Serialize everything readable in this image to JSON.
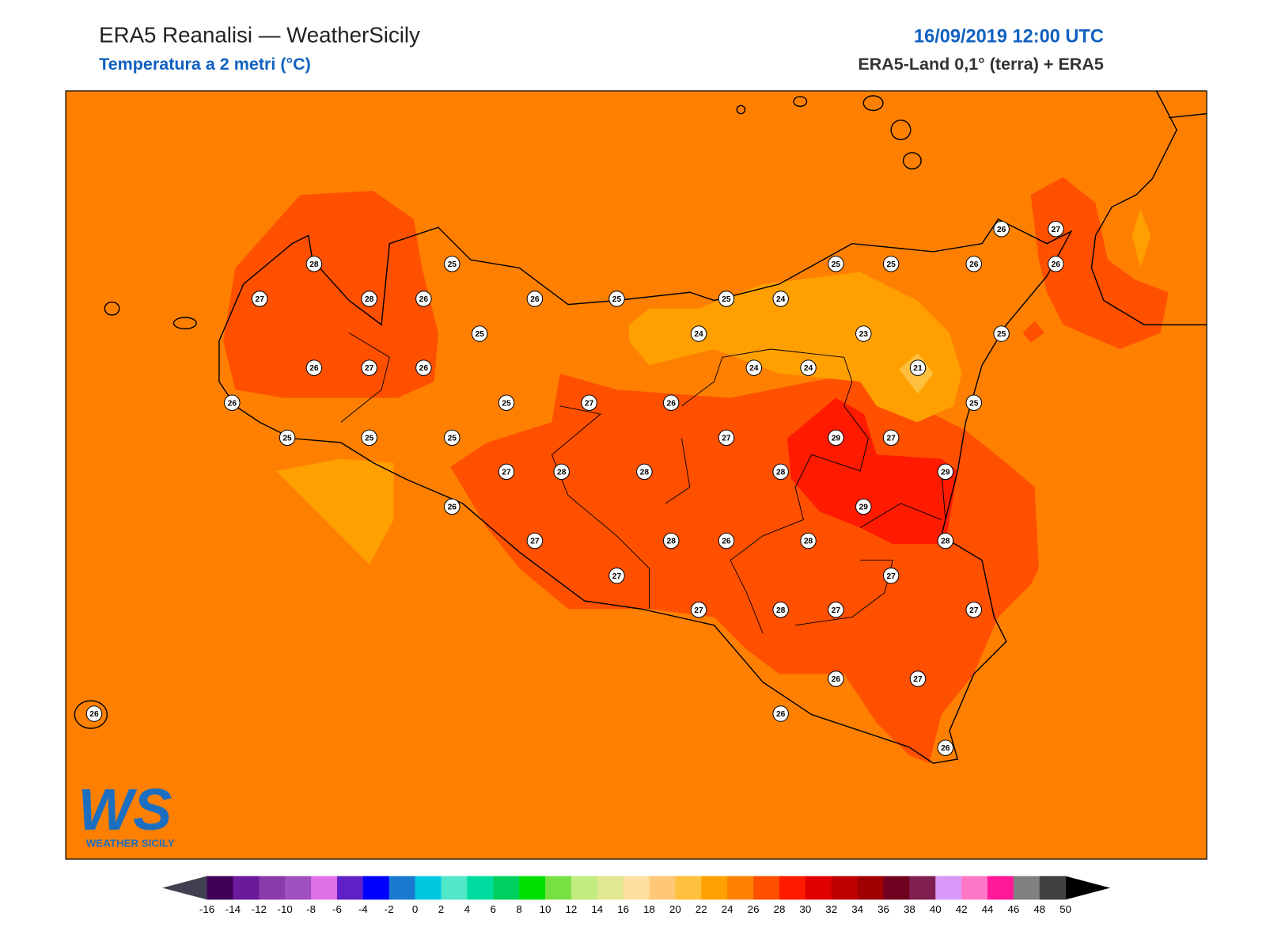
{
  "header": {
    "title": "ERA5 Reanalisi — WeatherSicily",
    "subtitle": "Temperatura a 2 metri (°C)",
    "datetime": "16/09/2019 12:00 UTC",
    "source": "ERA5-Land 0,1° (terra) + ERA5"
  },
  "map": {
    "stations": [
      28,
      25,
      27,
      28,
      26,
      26,
      25,
      25,
      26,
      27,
      26,
      26,
      25,
      25,
      25,
      25,
      27,
      26,
      25,
      24,
      24,
      24,
      24,
      25,
      25,
      26,
      26,
      27,
      26,
      23,
      25,
      21,
      25,
      27,
      29,
      27,
      27,
      28,
      28,
      28,
      29,
      26,
      29,
      27,
      28,
      26,
      28,
      28,
      27,
      27,
      27,
      28,
      27,
      27,
      26,
      27,
      26,
      26,
      26
    ]
  },
  "colorbar": {
    "ticks": [
      -16,
      -14,
      -12,
      -10,
      -8,
      -6,
      -4,
      -2,
      0,
      2,
      4,
      6,
      8,
      10,
      12,
      14,
      16,
      18,
      20,
      22,
      24,
      26,
      28,
      30,
      32,
      34,
      36,
      38,
      40,
      42,
      44,
      46,
      48,
      50
    ],
    "colors": [
      "#400058",
      "#6a1a9a",
      "#8a3aaa",
      "#a050c0",
      "#e070e8",
      "#6020c8",
      "#0000ff",
      "#1a7ad0",
      "#00c8e0",
      "#50e8c8",
      "#00dca0",
      "#00d060",
      "#00e000",
      "#78e040",
      "#c0ec80",
      "#e0e890",
      "#ffe0a0",
      "#ffc878",
      "#ffc040",
      "#ffa000",
      "#ff8000",
      "#ff5000",
      "#ff1a00",
      "#e00000",
      "#c00000",
      "#a00000",
      "#700020",
      "#802050",
      "#d898f8",
      "#ff78c8",
      "#ff1898",
      "#808080",
      "#404040"
    ],
    "under_color": "#404050",
    "over_color": "#000000"
  },
  "logo": {
    "mark": "WS",
    "text": "WEATHER SICILY"
  }
}
